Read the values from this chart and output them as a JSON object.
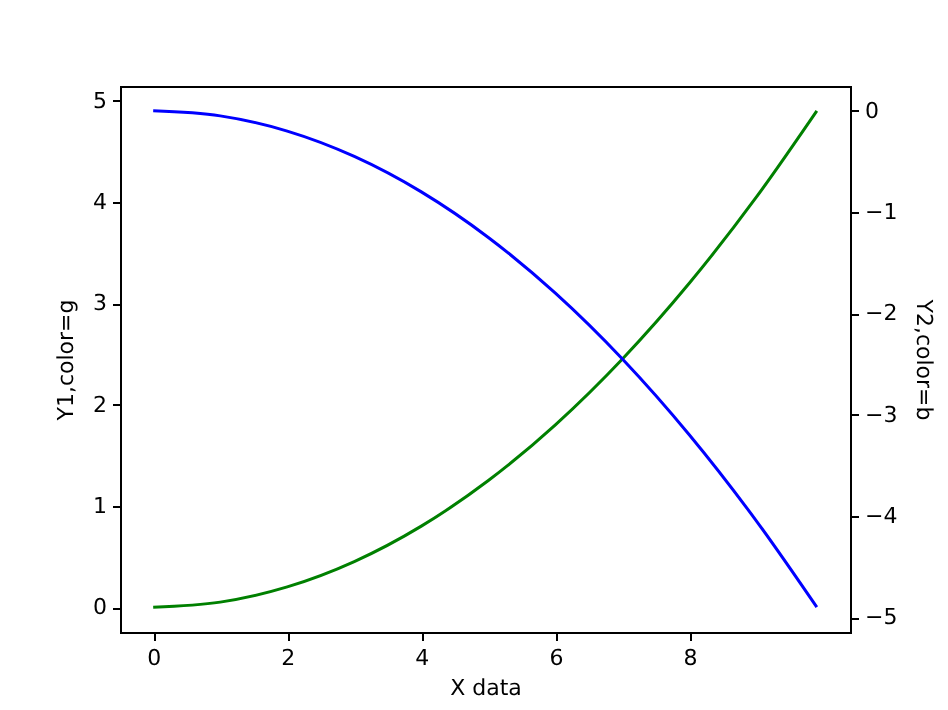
{
  "chart_data": {
    "type": "line",
    "xlabel": "X data",
    "ylabel": "Y1,color=g",
    "y2label": "Y2,color=b",
    "x": [
      0,
      1,
      2,
      3,
      4,
      5,
      6,
      7,
      8,
      9,
      9.9
    ],
    "series": [
      {
        "color": "#008000",
        "values": [
          0,
          0.05,
          0.2,
          0.45,
          0.8,
          1.25,
          1.8,
          2.45,
          3.2,
          4.05,
          4.9
        ]
      },
      {
        "color": "#0000ff",
        "axis": "y2",
        "values": [
          0,
          -0.05,
          -0.2,
          -0.45,
          -0.8,
          -1.25,
          -1.8,
          -2.45,
          -3.2,
          -4.05,
          -4.9
        ]
      }
    ],
    "xlim": [
      -0.495,
      10.395
    ],
    "xticks": [
      0,
      2,
      4,
      6,
      8
    ],
    "ylim": [
      -0.245,
      5.145
    ],
    "yticks": [
      0,
      1,
      2,
      3,
      4,
      5
    ],
    "y2lim": [
      -5.145,
      0.245
    ],
    "y2ticks": [
      -5,
      -4,
      -3,
      -2,
      -1,
      0
    ]
  }
}
